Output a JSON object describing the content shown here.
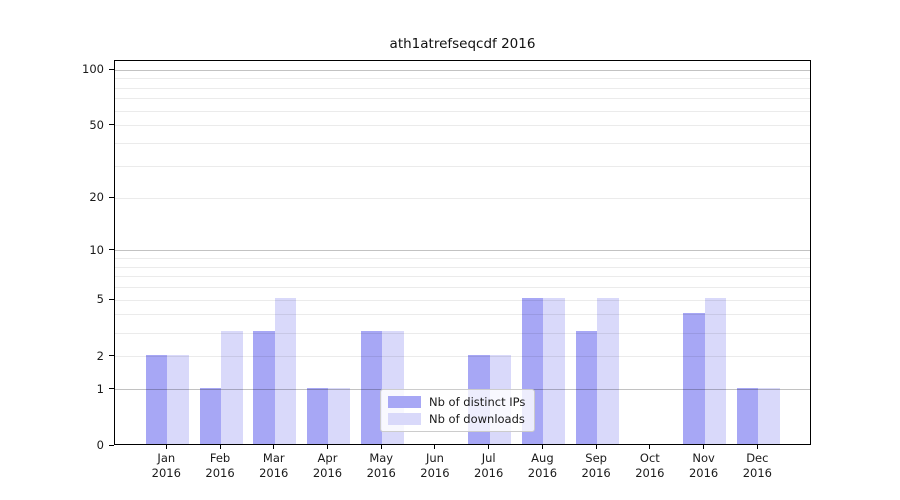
{
  "chart_data": {
    "type": "bar",
    "title": "ath1atrefseqcdf 2016",
    "year_label": "2016",
    "categories": [
      "Jan",
      "Feb",
      "Mar",
      "Apr",
      "May",
      "Jun",
      "Jul",
      "Aug",
      "Sep",
      "Oct",
      "Nov",
      "Dec"
    ],
    "series": [
      {
        "name": "Nb of distinct IPs",
        "color": "#a7a7f5",
        "values": [
          2,
          1,
          3,
          1,
          3,
          0,
          2,
          5,
          3,
          0,
          4,
          1
        ]
      },
      {
        "name": "Nb of downloads",
        "color": "#d9d9fa",
        "values": [
          2,
          3,
          5,
          1,
          3,
          0,
          2,
          5,
          5,
          0,
          5,
          1
        ]
      }
    ],
    "yaxis": {
      "scale": "log1p",
      "ylim": [
        0,
        112
      ],
      "tick_labels": [
        100,
        50,
        20,
        10,
        5,
        2,
        1,
        0
      ],
      "major_gridlines": [
        1,
        10,
        100
      ],
      "minor_gridlines": [
        2,
        3,
        4,
        5,
        6,
        7,
        8,
        9,
        20,
        30,
        40,
        50,
        60,
        70,
        80,
        90
      ]
    },
    "xlabel": "",
    "ylabel": "",
    "grid": "on",
    "legend": {
      "position": "inside-bottom-left-of-center",
      "entries": [
        "Nb of distinct IPs",
        "Nb of downloads"
      ]
    }
  }
}
